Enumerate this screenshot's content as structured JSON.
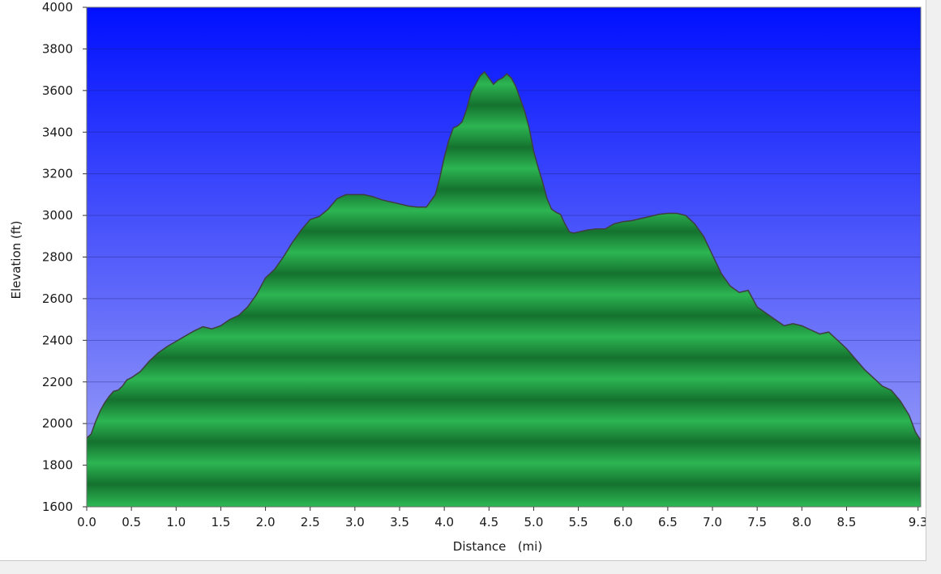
{
  "chart_data": {
    "type": "area",
    "xlabel": "Distance   (mi)",
    "ylabel": "Elevation (ft)",
    "xlim": [
      0,
      9.33
    ],
    "ylim": [
      1600,
      4000
    ],
    "x_ticks": [
      {
        "value": 0.0,
        "label": "0.0"
      },
      {
        "value": 0.5,
        "label": "0.5"
      },
      {
        "value": 1.0,
        "label": "1.0"
      },
      {
        "value": 1.5,
        "label": "1.5"
      },
      {
        "value": 2.0,
        "label": "2.0"
      },
      {
        "value": 2.5,
        "label": "2.5"
      },
      {
        "value": 3.0,
        "label": "3.0"
      },
      {
        "value": 3.5,
        "label": "3.5"
      },
      {
        "value": 4.0,
        "label": "4.0"
      },
      {
        "value": 4.5,
        "label": "4.5"
      },
      {
        "value": 5.0,
        "label": "5.0"
      },
      {
        "value": 5.5,
        "label": "5.5"
      },
      {
        "value": 6.0,
        "label": "6.0"
      },
      {
        "value": 6.5,
        "label": "6.5"
      },
      {
        "value": 7.0,
        "label": "7.0"
      },
      {
        "value": 7.5,
        "label": "7.5"
      },
      {
        "value": 8.0,
        "label": "8.0"
      },
      {
        "value": 8.5,
        "label": "8.5"
      },
      {
        "value": 9.3,
        "label": "9.3"
      }
    ],
    "y_ticks": [
      {
        "value": 1600,
        "label": "1600"
      },
      {
        "value": 1800,
        "label": "1800"
      },
      {
        "value": 2000,
        "label": "2000"
      },
      {
        "value": 2200,
        "label": "2200"
      },
      {
        "value": 2400,
        "label": "2400"
      },
      {
        "value": 2600,
        "label": "2600"
      },
      {
        "value": 2800,
        "label": "2800"
      },
      {
        "value": 3000,
        "label": "3000"
      },
      {
        "value": 3200,
        "label": "3200"
      },
      {
        "value": 3400,
        "label": "3400"
      },
      {
        "value": 3600,
        "label": "3600"
      },
      {
        "value": 3800,
        "label": "3800"
      },
      {
        "value": 4000,
        "label": "4000"
      }
    ],
    "grid": true,
    "colors": {
      "sky_top": "#0010ff",
      "sky_bottom": "#a6a9f6",
      "fill_light": "#2cb552",
      "fill_dark": "#15722f",
      "outline": "#3f3f3f"
    },
    "x": [
      0.0,
      0.05,
      0.1,
      0.15,
      0.2,
      0.25,
      0.3,
      0.35,
      0.4,
      0.45,
      0.5,
      0.6,
      0.7,
      0.8,
      0.9,
      1.0,
      1.1,
      1.2,
      1.3,
      1.4,
      1.5,
      1.6,
      1.7,
      1.8,
      1.9,
      2.0,
      2.1,
      2.2,
      2.3,
      2.4,
      2.5,
      2.6,
      2.7,
      2.8,
      2.9,
      3.0,
      3.1,
      3.2,
      3.3,
      3.4,
      3.5,
      3.6,
      3.7,
      3.8,
      3.9,
      3.95,
      4.0,
      4.05,
      4.1,
      4.15,
      4.2,
      4.25,
      4.3,
      4.35,
      4.4,
      4.45,
      4.5,
      4.55,
      4.6,
      4.65,
      4.7,
      4.75,
      4.8,
      4.85,
      4.9,
      4.95,
      5.0,
      5.05,
      5.1,
      5.15,
      5.2,
      5.25,
      5.3,
      5.35,
      5.4,
      5.45,
      5.5,
      5.6,
      5.7,
      5.8,
      5.9,
      6.0,
      6.1,
      6.2,
      6.3,
      6.4,
      6.5,
      6.6,
      6.7,
      6.8,
      6.9,
      7.0,
      7.1,
      7.2,
      7.3,
      7.4,
      7.5,
      7.6,
      7.7,
      7.8,
      7.9,
      8.0,
      8.1,
      8.2,
      8.3,
      8.4,
      8.5,
      8.6,
      8.7,
      8.8,
      8.9,
      9.0,
      9.1,
      9.2,
      9.27,
      9.33
    ],
    "y": [
      1930,
      1950,
      2010,
      2060,
      2100,
      2130,
      2155,
      2160,
      2180,
      2210,
      2220,
      2250,
      2300,
      2340,
      2370,
      2395,
      2420,
      2445,
      2465,
      2455,
      2470,
      2500,
      2520,
      2560,
      2620,
      2700,
      2740,
      2800,
      2870,
      2930,
      2980,
      2995,
      3030,
      3080,
      3100,
      3100,
      3100,
      3090,
      3075,
      3065,
      3055,
      3045,
      3040,
      3040,
      3100,
      3180,
      3280,
      3360,
      3420,
      3430,
      3450,
      3510,
      3590,
      3630,
      3670,
      3690,
      3660,
      3630,
      3650,
      3660,
      3680,
      3660,
      3620,
      3560,
      3500,
      3420,
      3310,
      3230,
      3160,
      3080,
      3030,
      3015,
      3005,
      2960,
      2920,
      2915,
      2920,
      2930,
      2935,
      2935,
      2960,
      2970,
      2975,
      2985,
      2995,
      3005,
      3010,
      3010,
      3000,
      2960,
      2900,
      2810,
      2720,
      2660,
      2630,
      2640,
      2560,
      2530,
      2500,
      2470,
      2480,
      2470,
      2450,
      2430,
      2440,
      2400,
      2360,
      2310,
      2260,
      2220,
      2180,
      2160,
      2110,
      2040,
      1960,
      1920
    ]
  }
}
